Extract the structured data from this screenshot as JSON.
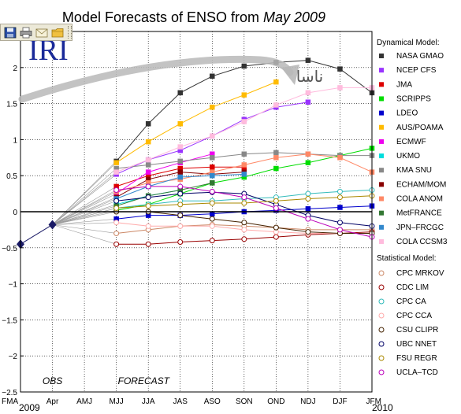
{
  "toolbar": {
    "buttons": [
      {
        "name": "save-icon",
        "icon": "floppy-disk"
      },
      {
        "name": "print-icon",
        "icon": "printer"
      },
      {
        "name": "email-icon",
        "icon": "envelope"
      },
      {
        "name": "folder-icon",
        "icon": "folder"
      }
    ]
  },
  "logo_text": "IRI",
  "annotation_text": "ناسا",
  "chart_data": {
    "type": "line",
    "title": "Model Forecasts of ENSO from ",
    "title_italic": "May 2009",
    "xlabel": "",
    "ylabel": "",
    "categories": [
      "FMA",
      "Apr",
      "AMJ",
      "MJJ",
      "JJA",
      "JAS",
      "ASO",
      "SON",
      "OND",
      "NDJ",
      "DJF",
      "JFM"
    ],
    "year_start_label": "2009",
    "year_end_label": "2010",
    "ylim": [
      -2.5,
      2.5
    ],
    "yticks": [
      "−2.5",
      "−2",
      "−1.5",
      "−1",
      "−0.5",
      "0",
      "0.5",
      "1",
      "1.5",
      "2",
      "2.5"
    ],
    "ytick_values": [
      -2.5,
      -2,
      -1.5,
      -1,
      -0.5,
      0,
      0.5,
      1,
      1.5,
      2,
      2.5
    ],
    "grid": true,
    "region_labels": {
      "obs": "OBS",
      "forecast": "FORECAST"
    },
    "observed": {
      "values": [
        -0.45,
        -0.18
      ],
      "color": "#1a1a66"
    },
    "legend_headers": {
      "dynamical": "Dynamical Model:",
      "statistical": "Statistical Model:"
    },
    "series": [
      {
        "name": "NASA GMAO",
        "group": "dynamical",
        "color": "#333333",
        "marker": "filled-square",
        "values": [
          null,
          -0.18,
          null,
          0.7,
          1.22,
          1.65,
          1.88,
          2.02,
          2.07,
          2.1,
          1.98,
          1.65
        ]
      },
      {
        "name": "NCEP CFS",
        "group": "dynamical",
        "color": "#9933ff",
        "marker": "filled-square",
        "values": [
          null,
          -0.18,
          null,
          0.52,
          0.72,
          0.85,
          1.05,
          1.28,
          1.45,
          1.52,
          null,
          null
        ]
      },
      {
        "name": "JMA",
        "group": "dynamical",
        "color": "#dd0000",
        "marker": "filled-square",
        "values": [
          null,
          -0.18,
          null,
          0.35,
          0.5,
          0.6,
          0.62,
          0.62,
          null,
          null,
          null,
          null
        ]
      },
      {
        "name": "SCRIPPS",
        "group": "dynamical",
        "color": "#00dd00",
        "marker": "filled-square",
        "values": [
          null,
          -0.18,
          null,
          0.02,
          0.1,
          0.25,
          0.4,
          0.48,
          0.6,
          0.68,
          0.78,
          0.88
        ]
      },
      {
        "name": "LDEO",
        "group": "dynamical",
        "color": "#0000cc",
        "marker": "filled-square",
        "values": [
          null,
          -0.18,
          null,
          -0.1,
          -0.05,
          -0.05,
          -0.03,
          0.0,
          0.02,
          0.04,
          0.06,
          0.08
        ]
      },
      {
        "name": "AUS/POAMA",
        "group": "dynamical",
        "color": "#ffbb00",
        "marker": "filled-square",
        "values": [
          null,
          -0.18,
          null,
          0.68,
          0.97,
          1.22,
          1.45,
          1.62,
          1.8,
          null,
          null,
          null
        ]
      },
      {
        "name": "ECMWF",
        "group": "dynamical",
        "color": "#ee00ee",
        "marker": "filled-square",
        "values": [
          null,
          -0.18,
          null,
          0.25,
          0.55,
          0.68,
          0.8,
          null,
          null,
          null,
          null,
          null
        ]
      },
      {
        "name": "UKMO",
        "group": "dynamical",
        "color": "#00dddd",
        "marker": "filled-square",
        "values": [
          null,
          -0.18,
          null,
          0.1,
          0.22,
          0.3,
          null,
          null,
          null,
          null,
          null,
          null
        ]
      },
      {
        "name": "KMA SNU",
        "group": "dynamical",
        "color": "#888888",
        "marker": "filled-square",
        "values": [
          null,
          -0.18,
          null,
          0.6,
          0.65,
          0.7,
          0.75,
          0.8,
          0.82,
          0.8,
          0.78,
          0.78
        ]
      },
      {
        "name": "ECHAM/MOM",
        "group": "dynamical",
        "color": "#880000",
        "marker": "filled-square",
        "values": [
          null,
          -0.18,
          null,
          0.2,
          0.45,
          0.55,
          0.52,
          0.55,
          null,
          null,
          null,
          null
        ]
      },
      {
        "name": "COLA ANOM",
        "group": "dynamical",
        "color": "#ff8866",
        "marker": "filled-square",
        "values": [
          null,
          -0.18,
          null,
          0.28,
          0.4,
          0.45,
          0.55,
          0.65,
          0.75,
          0.8,
          0.75,
          0.55
        ]
      },
      {
        "name": "MetFRANCE",
        "group": "dynamical",
        "color": "#337733",
        "marker": "filled-square",
        "values": [
          null,
          -0.18,
          null,
          0.08,
          0.22,
          0.3,
          0.4,
          null,
          null,
          null,
          null,
          null
        ]
      },
      {
        "name": "JPN–FRCGC",
        "group": "dynamical",
        "color": "#3388cc",
        "marker": "filled-square",
        "values": [
          null,
          -0.18,
          null,
          0.18,
          0.35,
          0.48,
          0.5,
          0.52,
          null,
          null,
          null,
          null
        ]
      },
      {
        "name": "COLA CCSM3",
        "group": "dynamical",
        "color": "#ffbbdd",
        "marker": "filled-square",
        "values": [
          null,
          -0.18,
          null,
          0.55,
          0.72,
          0.9,
          1.05,
          1.25,
          1.48,
          1.65,
          1.72,
          1.72
        ]
      },
      {
        "name": "CPC MRKOV",
        "group": "statistical",
        "color": "#cc8866",
        "marker": "open-circle",
        "values": [
          null,
          -0.18,
          null,
          -0.3,
          -0.25,
          -0.2,
          -0.18,
          -0.2,
          -0.22,
          -0.25,
          -0.25,
          -0.25
        ]
      },
      {
        "name": "CDC LIM",
        "group": "statistical",
        "color": "#990000",
        "marker": "open-circle",
        "values": [
          null,
          -0.18,
          null,
          -0.45,
          -0.45,
          -0.42,
          -0.4,
          -0.38,
          -0.35,
          -0.32,
          -0.3,
          -0.28
        ]
      },
      {
        "name": "CPC CA",
        "group": "statistical",
        "color": "#33bbbb",
        "marker": "open-circle",
        "values": [
          null,
          -0.18,
          null,
          0.05,
          0.1,
          0.15,
          0.15,
          0.18,
          0.2,
          0.25,
          0.28,
          0.3
        ]
      },
      {
        "name": "CPC CCA",
        "group": "statistical",
        "color": "#ffaaaa",
        "marker": "open-circle",
        "values": [
          null,
          -0.18,
          null,
          -0.15,
          -0.2,
          -0.2,
          -0.2,
          -0.25,
          -0.28,
          -0.3,
          -0.3,
          -0.3
        ]
      },
      {
        "name": "CSU CLIPR",
        "group": "statistical",
        "color": "#442200",
        "marker": "open-circle",
        "values": [
          null,
          -0.18,
          null,
          0.0,
          0.0,
          -0.05,
          -0.1,
          -0.15,
          -0.22,
          -0.28,
          -0.3,
          -0.3
        ]
      },
      {
        "name": "UBC NNET",
        "group": "statistical",
        "color": "#000066",
        "marker": "open-circle",
        "values": [
          null,
          -0.18,
          null,
          0.15,
          0.2,
          0.25,
          0.27,
          0.25,
          0.1,
          -0.05,
          -0.15,
          -0.2
        ]
      },
      {
        "name": "FSU REGR",
        "group": "statistical",
        "color": "#aa8800",
        "marker": "open-circle",
        "values": [
          null,
          -0.18,
          null,
          0.05,
          0.08,
          0.1,
          0.12,
          0.12,
          0.15,
          0.18,
          0.2,
          0.22
        ]
      },
      {
        "name": "UCLA–TCD",
        "group": "statistical",
        "color": "#bb00bb",
        "marker": "open-circle",
        "values": [
          null,
          -0.18,
          null,
          0.3,
          0.35,
          0.35,
          0.28,
          0.2,
          0.05,
          -0.1,
          -0.25,
          -0.35
        ]
      }
    ]
  }
}
